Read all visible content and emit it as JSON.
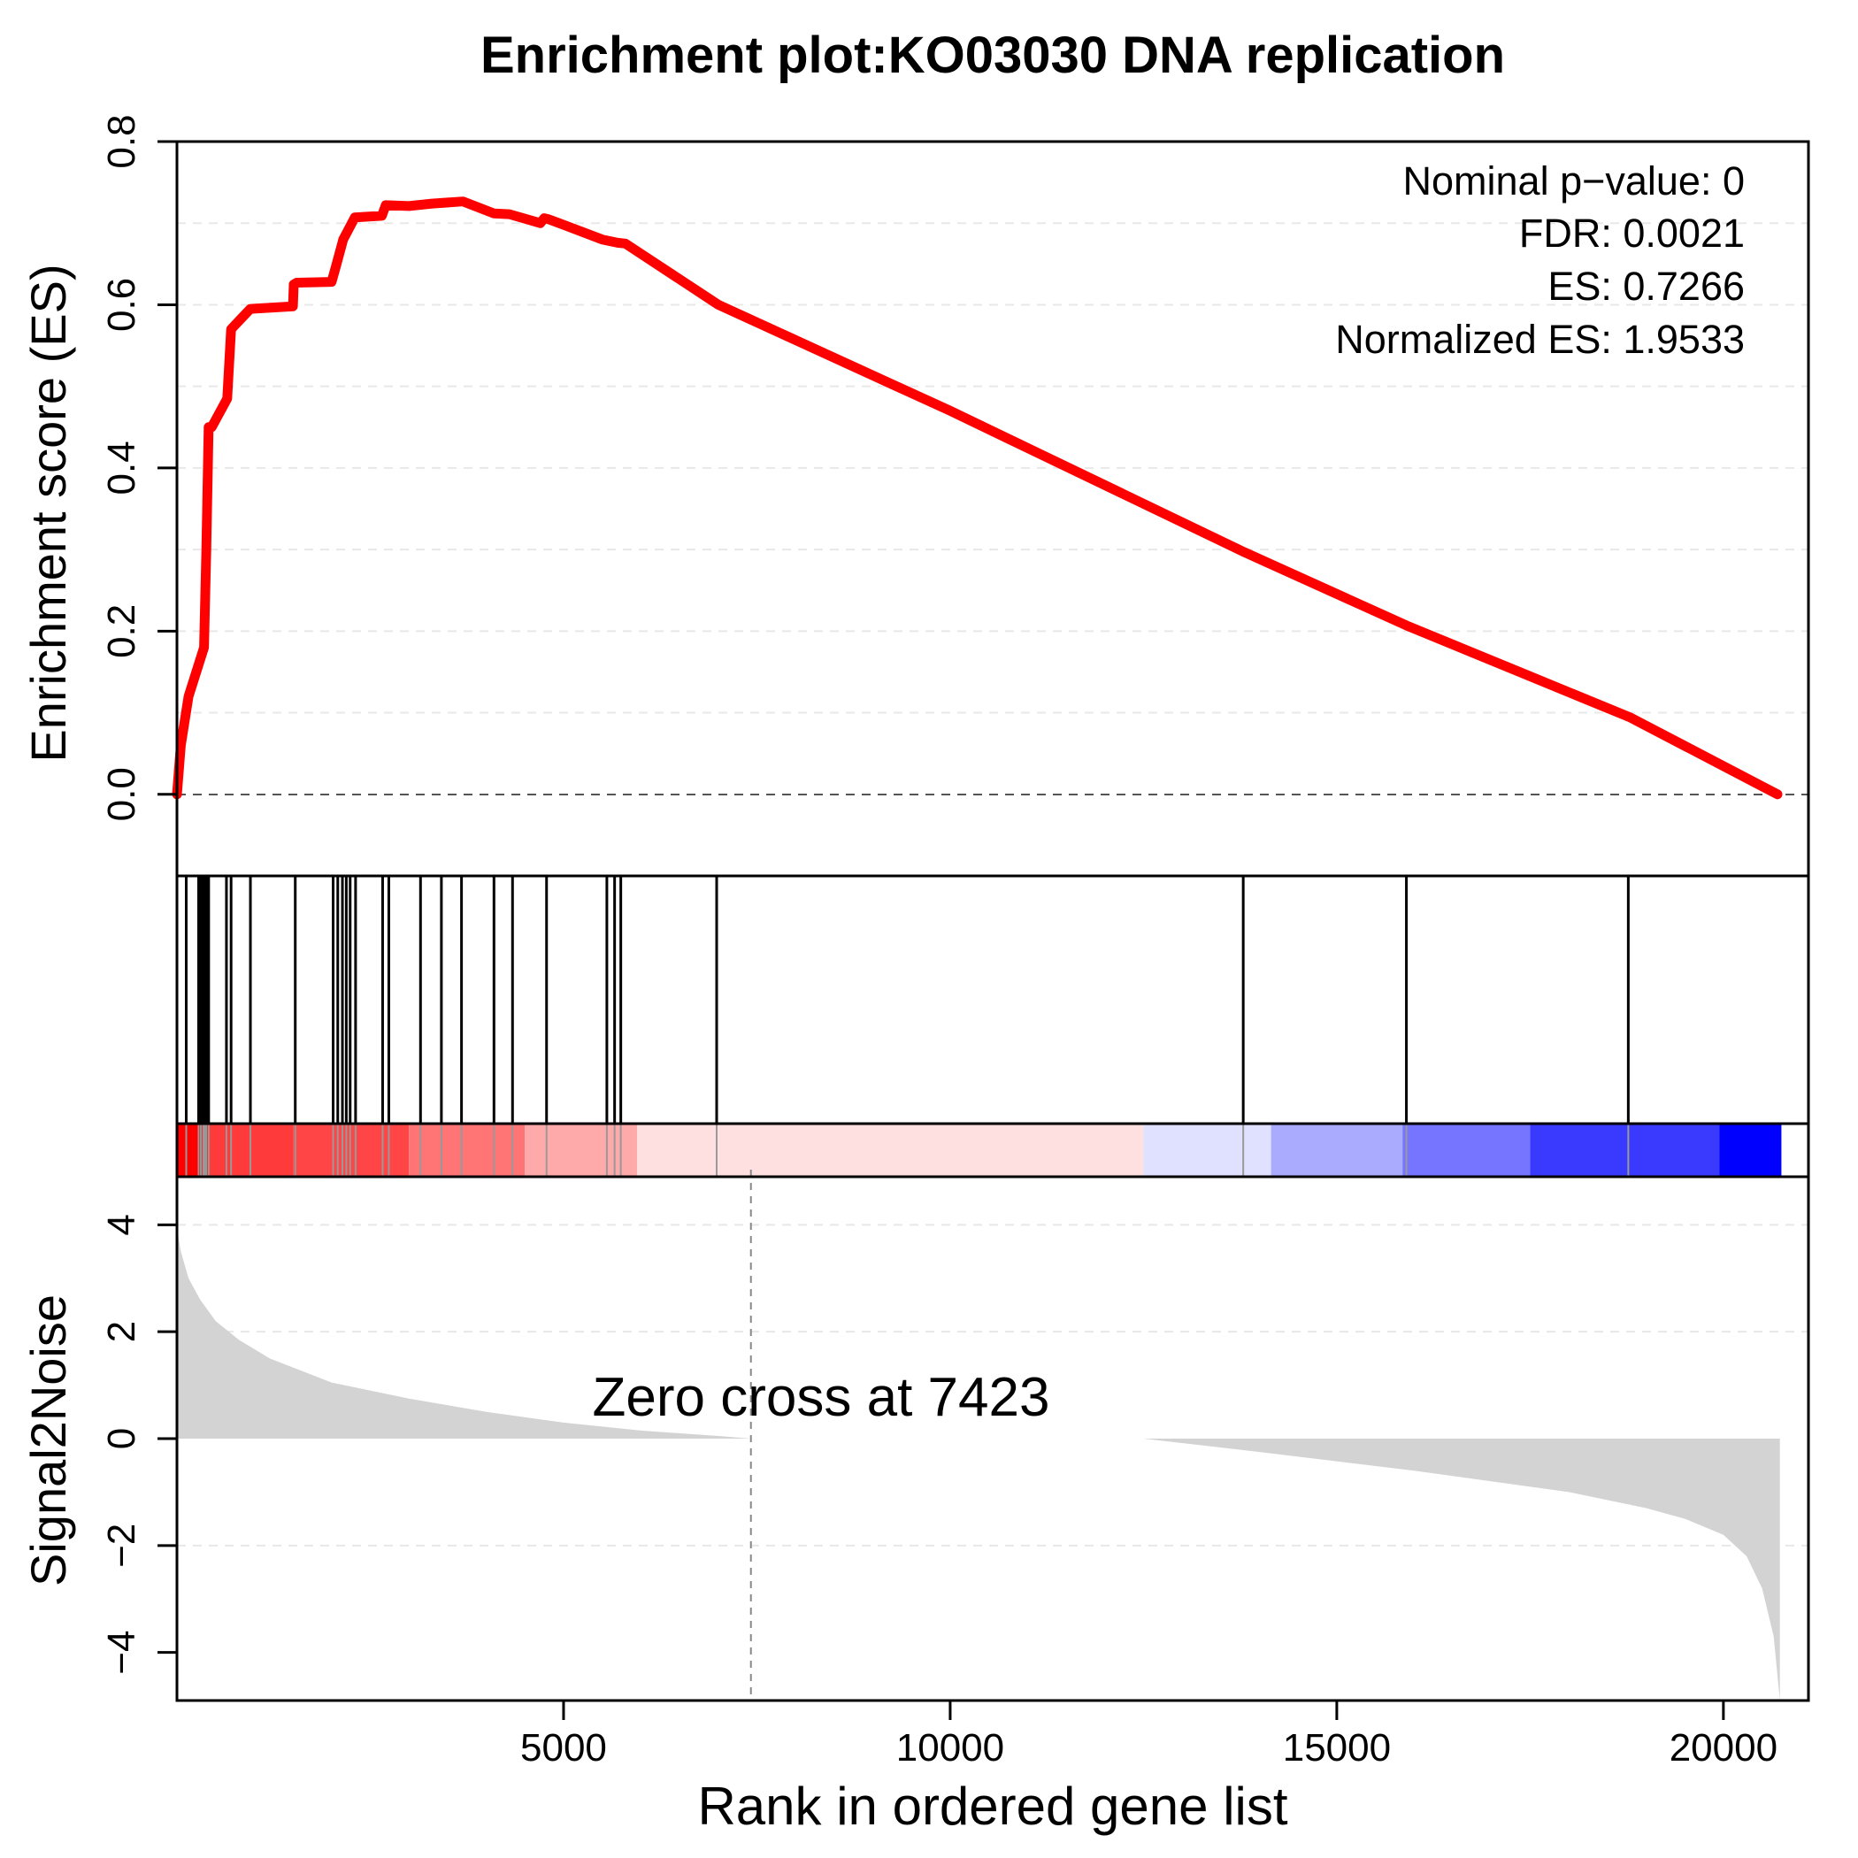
{
  "chart_data": {
    "type": "line",
    "title": "Enrichment plot:KO03030 DNA replication",
    "x_range": [
      0,
      21100
    ],
    "x_ticks": [
      5000,
      10000,
      15000,
      20000
    ],
    "xlabel": "Rank in ordered gene list",
    "top_panel": {
      "ylabel": "Enrichment score (ES)",
      "ylim": [
        -0.1,
        0.8
      ],
      "y_ticks": [
        0.0,
        0.2,
        0.4,
        0.6,
        0.8
      ],
      "y_tick_labels": [
        "0.0",
        "0.2",
        "0.4",
        "0.6",
        "0.8"
      ],
      "gridlines": [
        0.1,
        0.2,
        0.3,
        0.4,
        0.5,
        0.6,
        0.7
      ],
      "es_curve": {
        "x": [
          0,
          50,
          150,
          350,
          380,
          410,
          450,
          650,
          700,
          750,
          950,
          1500,
          1510,
          1550,
          2000,
          2050,
          2150,
          2300,
          2650,
          2700,
          3000,
          3300,
          3700,
          4100,
          4300,
          4700,
          4750,
          4800,
          5000,
          5500,
          5700,
          5800,
          7000,
          10000,
          13800,
          15900,
          18800,
          20700
        ],
        "y": [
          0.0,
          0.06,
          0.12,
          0.18,
          0.3,
          0.45,
          0.45,
          0.485,
          0.57,
          0.575,
          0.595,
          0.598,
          0.625,
          0.627,
          0.628,
          0.645,
          0.68,
          0.707,
          0.709,
          0.722,
          0.721,
          0.724,
          0.7266,
          0.712,
          0.711,
          0.7,
          0.706,
          0.705,
          0.698,
          0.68,
          0.676,
          0.675,
          0.6,
          0.47,
          0.297,
          0.207,
          0.094,
          0.0
        ],
        "color": "#ff0000"
      },
      "stats": [
        "Nominal p−value: 0",
        "FDR: 0.0021",
        "ES: 0.7266",
        "Normalized ES: 1.9533"
      ]
    },
    "hit_panel": {
      "hit_ranks": [
        120,
        280,
        310,
        340,
        360,
        380,
        410,
        640,
        700,
        950,
        1530,
        2020,
        2080,
        2140,
        2190,
        2240,
        2310,
        2660,
        2740,
        3150,
        3420,
        3680,
        4100,
        4340,
        4780,
        5560,
        5660,
        5740,
        6980,
        13790,
        15900,
        18770
      ]
    },
    "color_bar": {
      "segments": [
        {
          "from": 0,
          "to": 400,
          "color": "#ff0000"
        },
        {
          "from": 400,
          "to": 1500,
          "color": "#ff3a3a"
        },
        {
          "from": 1500,
          "to": 3000,
          "color": "#ff4545"
        },
        {
          "from": 3000,
          "to": 4500,
          "color": "#ff7575"
        },
        {
          "from": 4500,
          "to": 5950,
          "color": "#ffaaaa"
        },
        {
          "from": 5950,
          "to": 12500,
          "color": "#ffe0e0"
        },
        {
          "from": 12500,
          "to": 14150,
          "color": "#e0e0ff"
        },
        {
          "from": 14150,
          "to": 15850,
          "color": "#aaaaff"
        },
        {
          "from": 15850,
          "to": 17500,
          "color": "#7575ff"
        },
        {
          "from": 17500,
          "to": 19950,
          "color": "#3a3aff"
        },
        {
          "from": 19950,
          "to": 20750,
          "color": "#0000ff"
        }
      ]
    },
    "bottom_panel": {
      "ylabel": "Signal2Noise",
      "ylim": [
        -4.9,
        4.9
      ],
      "y_ticks": [
        4,
        2,
        0,
        -2,
        -4
      ],
      "y_tick_labels": [
        "4",
        "2",
        "0",
        "−2",
        "−4"
      ],
      "gridlines": [
        4,
        2,
        -2
      ],
      "ranked_metric": {
        "x": [
          0,
          50,
          150,
          300,
          500,
          800,
          1200,
          2000,
          3000,
          4000,
          5000,
          6000,
          7000,
          7423,
          9000,
          11000,
          12500,
          14000,
          16000,
          18000,
          19000,
          19500,
          20000,
          20300,
          20500,
          20650,
          20730
        ],
        "y": [
          3.95,
          3.5,
          3.0,
          2.6,
          2.2,
          1.85,
          1.5,
          1.05,
          0.75,
          0.5,
          0.3,
          0.15,
          0.05,
          0.0,
          0.0,
          0.0,
          0.0,
          -0.25,
          -0.6,
          -1.0,
          -1.3,
          -1.5,
          -1.8,
          -2.2,
          -2.8,
          -3.7,
          -4.9
        ],
        "color": "#d3d3d3"
      },
      "zero_cross": 7423,
      "zero_cross_label": "Zero cross at 7423"
    }
  }
}
